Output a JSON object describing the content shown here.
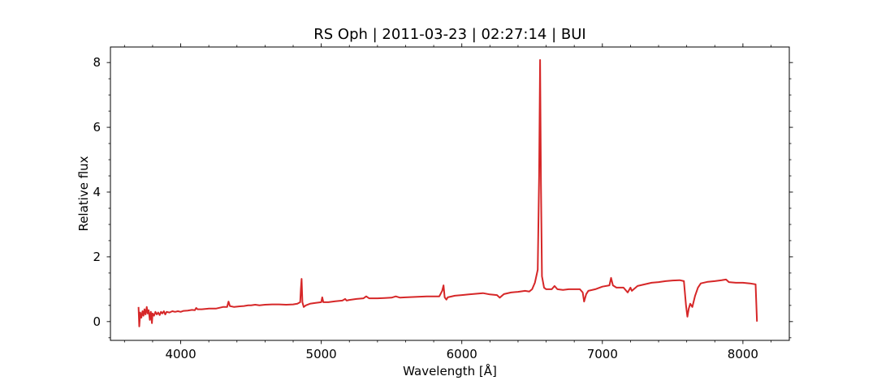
{
  "chart_data": {
    "type": "line",
    "title": "RS Oph | 2011-03-23 | 02:27:14 | BUI",
    "xlabel": "Wavelength [Å]",
    "ylabel": "Relative flux",
    "xlim": [
      3500,
      8330
    ],
    "ylim": [
      -0.58,
      8.48
    ],
    "xticks": [
      4000,
      5000,
      6000,
      7000,
      8000
    ],
    "yticks": [
      0,
      2,
      4,
      6,
      8
    ],
    "grid": false,
    "legend": "none",
    "series": [
      {
        "color": "#d62728",
        "points": [
          [
            3700,
            0.45
          ],
          [
            3705,
            -0.15
          ],
          [
            3712,
            0.28
          ],
          [
            3720,
            0.12
          ],
          [
            3728,
            0.32
          ],
          [
            3735,
            0.18
          ],
          [
            3742,
            0.38
          ],
          [
            3750,
            0.22
          ],
          [
            3758,
            0.45
          ],
          [
            3765,
            0.25
          ],
          [
            3772,
            0.35
          ],
          [
            3780,
            0.05
          ],
          [
            3788,
            0.3
          ],
          [
            3795,
            -0.05
          ],
          [
            3800,
            0.25
          ],
          [
            3810,
            0.18
          ],
          [
            3820,
            0.3
          ],
          [
            3830,
            0.22
          ],
          [
            3840,
            0.28
          ],
          [
            3850,
            0.2
          ],
          [
            3860,
            0.3
          ],
          [
            3870,
            0.25
          ],
          [
            3880,
            0.32
          ],
          [
            3890,
            0.22
          ],
          [
            3900,
            0.3
          ],
          [
            3920,
            0.28
          ],
          [
            3940,
            0.32
          ],
          [
            3960,
            0.3
          ],
          [
            3980,
            0.32
          ],
          [
            4000,
            0.3
          ],
          [
            4020,
            0.33
          ],
          [
            4050,
            0.34
          ],
          [
            4080,
            0.36
          ],
          [
            4100,
            0.35
          ],
          [
            4110,
            0.42
          ],
          [
            4120,
            0.38
          ],
          [
            4150,
            0.38
          ],
          [
            4200,
            0.4
          ],
          [
            4250,
            0.4
          ],
          [
            4300,
            0.45
          ],
          [
            4330,
            0.45
          ],
          [
            4340,
            0.62
          ],
          [
            4350,
            0.48
          ],
          [
            4380,
            0.45
          ],
          [
            4420,
            0.47
          ],
          [
            4450,
            0.48
          ],
          [
            4480,
            0.5
          ],
          [
            4500,
            0.5
          ],
          [
            4530,
            0.52
          ],
          [
            4560,
            0.5
          ],
          [
            4600,
            0.52
          ],
          [
            4650,
            0.53
          ],
          [
            4700,
            0.53
          ],
          [
            4750,
            0.52
          ],
          [
            4800,
            0.53
          ],
          [
            4830,
            0.55
          ],
          [
            4850,
            0.6
          ],
          [
            4855,
            1.0
          ],
          [
            4860,
            1.32
          ],
          [
            4866,
            0.6
          ],
          [
            4875,
            0.45
          ],
          [
            4890,
            0.5
          ],
          [
            4920,
            0.55
          ],
          [
            4960,
            0.58
          ],
          [
            5000,
            0.6
          ],
          [
            5007,
            0.75
          ],
          [
            5015,
            0.6
          ],
          [
            5050,
            0.6
          ],
          [
            5100,
            0.63
          ],
          [
            5150,
            0.65
          ],
          [
            5170,
            0.7
          ],
          [
            5180,
            0.65
          ],
          [
            5200,
            0.67
          ],
          [
            5250,
            0.7
          ],
          [
            5300,
            0.72
          ],
          [
            5320,
            0.78
          ],
          [
            5340,
            0.72
          ],
          [
            5400,
            0.72
          ],
          [
            5450,
            0.73
          ],
          [
            5500,
            0.74
          ],
          [
            5530,
            0.78
          ],
          [
            5560,
            0.74
          ],
          [
            5600,
            0.75
          ],
          [
            5650,
            0.76
          ],
          [
            5700,
            0.77
          ],
          [
            5750,
            0.78
          ],
          [
            5800,
            0.78
          ],
          [
            5840,
            0.78
          ],
          [
            5860,
            0.95
          ],
          [
            5870,
            1.12
          ],
          [
            5878,
            0.75
          ],
          [
            5890,
            0.68
          ],
          [
            5900,
            0.75
          ],
          [
            5950,
            0.8
          ],
          [
            6000,
            0.82
          ],
          [
            6050,
            0.84
          ],
          [
            6100,
            0.86
          ],
          [
            6150,
            0.88
          ],
          [
            6200,
            0.84
          ],
          [
            6250,
            0.82
          ],
          [
            6270,
            0.74
          ],
          [
            6300,
            0.85
          ],
          [
            6350,
            0.9
          ],
          [
            6400,
            0.92
          ],
          [
            6450,
            0.95
          ],
          [
            6480,
            0.93
          ],
          [
            6500,
            1.0
          ],
          [
            6520,
            1.2
          ],
          [
            6540,
            1.6
          ],
          [
            6550,
            4.5
          ],
          [
            6557,
            8.08
          ],
          [
            6563,
            4.2
          ],
          [
            6570,
            1.4
          ],
          [
            6585,
            1.05
          ],
          [
            6600,
            1.0
          ],
          [
            6640,
            1.0
          ],
          [
            6660,
            1.1
          ],
          [
            6680,
            1.0
          ],
          [
            6720,
            0.98
          ],
          [
            6760,
            1.0
          ],
          [
            6800,
            1.0
          ],
          [
            6840,
            1.0
          ],
          [
            6860,
            0.9
          ],
          [
            6870,
            0.62
          ],
          [
            6885,
            0.85
          ],
          [
            6900,
            0.95
          ],
          [
            6950,
            1.0
          ],
          [
            7000,
            1.08
          ],
          [
            7050,
            1.12
          ],
          [
            7062,
            1.35
          ],
          [
            7075,
            1.12
          ],
          [
            7100,
            1.05
          ],
          [
            7150,
            1.05
          ],
          [
            7180,
            0.9
          ],
          [
            7200,
            1.05
          ],
          [
            7210,
            0.95
          ],
          [
            7250,
            1.1
          ],
          [
            7300,
            1.15
          ],
          [
            7350,
            1.2
          ],
          [
            7400,
            1.22
          ],
          [
            7450,
            1.25
          ],
          [
            7500,
            1.27
          ],
          [
            7550,
            1.28
          ],
          [
            7580,
            1.25
          ],
          [
            7595,
            0.5
          ],
          [
            7605,
            0.15
          ],
          [
            7615,
            0.4
          ],
          [
            7625,
            0.55
          ],
          [
            7640,
            0.45
          ],
          [
            7660,
            0.8
          ],
          [
            7680,
            1.05
          ],
          [
            7700,
            1.18
          ],
          [
            7750,
            1.23
          ],
          [
            7800,
            1.25
          ],
          [
            7850,
            1.28
          ],
          [
            7880,
            1.3
          ],
          [
            7900,
            1.22
          ],
          [
            7950,
            1.2
          ],
          [
            8000,
            1.2
          ],
          [
            8050,
            1.18
          ],
          [
            8090,
            1.15
          ],
          [
            8100,
            0.0
          ]
        ]
      }
    ]
  }
}
